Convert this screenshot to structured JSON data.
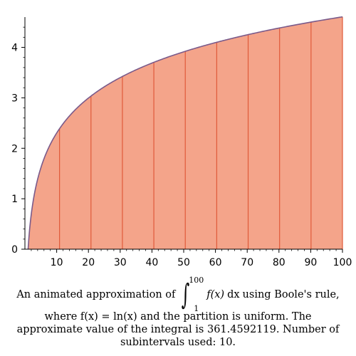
{
  "chart_data": {
    "type": "area",
    "function": "ln(x)",
    "x": [
      1,
      10.9,
      20.8,
      30.7,
      40.6,
      50.5,
      60.4,
      70.3,
      80.2,
      90.1,
      100
    ],
    "y": [
      0,
      2.389,
      3.035,
      3.424,
      3.704,
      3.922,
      4.101,
      4.253,
      4.385,
      4.501,
      4.605
    ],
    "xlim": [
      0,
      100
    ],
    "ylim": [
      0,
      4.6
    ],
    "x_ticks": [
      "10",
      "20",
      "30",
      "40",
      "50",
      "60",
      "70",
      "80",
      "90",
      "100"
    ],
    "y_ticks": [
      "0",
      "1",
      "2",
      "3",
      "4"
    ],
    "fill_color": "#f4a48a",
    "edge_color": "#e05a3a",
    "curve_color": "#7a5a8a",
    "grid": false
  },
  "caption": {
    "prefix": "An animated approximation of",
    "int_upper": "100",
    "int_lower": "1",
    "integrand": "f(x)",
    "dx": "dx",
    "suffix": "using Boole's rule,",
    "line2": "where f(x) = ln(x) and the partition is uniform.  The",
    "line3": "approximate value of the integral is 361.4592119.  Number of",
    "line4": "subintervals used: 10."
  }
}
